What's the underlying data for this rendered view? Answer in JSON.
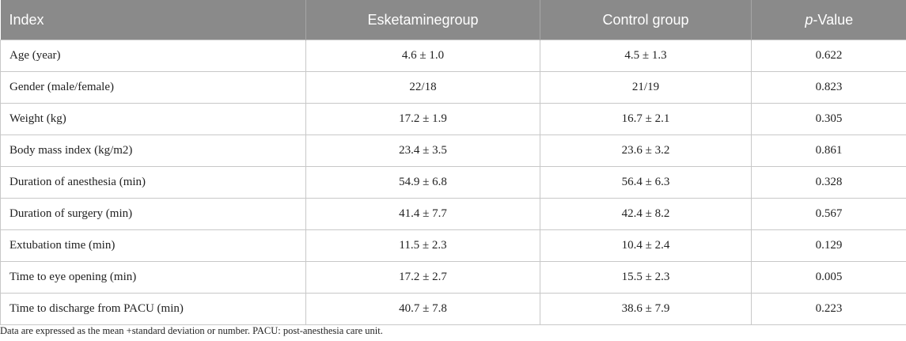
{
  "table": {
    "headers": {
      "index": "Index",
      "esketamine": "Esketaminegroup",
      "control": "Control group",
      "p_prefix": "p",
      "p_suffix": "-Value"
    },
    "rows": [
      {
        "index": "Age (year)",
        "esketamine": "4.6 ± 1.0",
        "control": "4.5 ± 1.3",
        "p": "0.622"
      },
      {
        "index": "Gender (male/female)",
        "esketamine": "22/18",
        "control": "21/19",
        "p": "0.823"
      },
      {
        "index": "Weight (kg)",
        "esketamine": "17.2 ± 1.9",
        "control": "16.7 ± 2.1",
        "p": "0.305"
      },
      {
        "index": "Body mass index (kg/m2)",
        "esketamine": "23.4 ± 3.5",
        "control": "23.6 ± 3.2",
        "p": "0.861"
      },
      {
        "index": "Duration of anesthesia (min)",
        "esketamine": "54.9 ± 6.8",
        "control": "56.4 ± 6.3",
        "p": "0.328"
      },
      {
        "index": "Duration of surgery (min)",
        "esketamine": "41.4 ± 7.7",
        "control": "42.4 ± 8.2",
        "p": "0.567"
      },
      {
        "index": "Extubation time (min)",
        "esketamine": "11.5 ± 2.3",
        "control": "10.4 ± 2.4",
        "p": "0.129"
      },
      {
        "index": "Time to eye opening (min)",
        "esketamine": "17.2 ± 2.7",
        "control": "15.5 ± 2.3",
        "p": "0.005"
      },
      {
        "index": "Time to discharge from PACU (min)",
        "esketamine": "40.7 ± 7.8",
        "control": "38.6 ± 7.9",
        "p": "0.223"
      }
    ]
  },
  "footnote": "Data are expressed as the mean +standard deviation or number. PACU: post-anesthesia care unit.",
  "colors": {
    "header_background": "#8a8a8a",
    "header_text": "#ffffff",
    "border": "#c8c8c8",
    "body_text": "#222222"
  }
}
